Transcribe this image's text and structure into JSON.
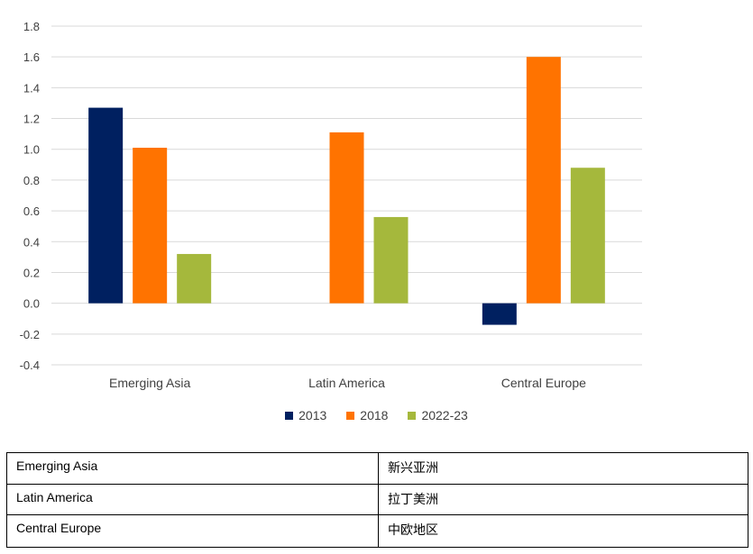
{
  "chart_data": {
    "type": "bar",
    "categories": [
      "Emerging Asia",
      "Latin America",
      "Central Europe"
    ],
    "series": [
      {
        "name": "2013",
        "color": "#002060",
        "values": [
          1.27,
          null,
          -0.14
        ]
      },
      {
        "name": "2018",
        "color": "#ff7300",
        "values": [
          1.01,
          1.11,
          1.6
        ]
      },
      {
        "name": "2022-23",
        "color": "#a5b83c",
        "values": [
          0.32,
          0.56,
          0.88
        ]
      }
    ],
    "ylim": [
      -0.4,
      1.8
    ],
    "yticks": [
      "1.8",
      "1.6",
      "1.4",
      "1.2",
      "1.0",
      "0.8",
      "0.6",
      "0.4",
      "0.2",
      "0.0",
      "-0.2",
      "-0.4"
    ],
    "ytick_values": [
      1.8,
      1.6,
      1.4,
      1.2,
      1.0,
      0.8,
      0.6,
      0.4,
      0.2,
      0.0,
      -0.2,
      -0.4
    ],
    "grid": true,
    "legend": "bottom-center",
    "title": "",
    "xlabel": "",
    "ylabel": ""
  },
  "translation_table": [
    {
      "en": "Emerging Asia",
      "zh": "新兴亚洲"
    },
    {
      "en": "Latin America",
      "zh": "拉丁美洲"
    },
    {
      "en": "Central Europe",
      "zh": "中欧地区"
    }
  ]
}
